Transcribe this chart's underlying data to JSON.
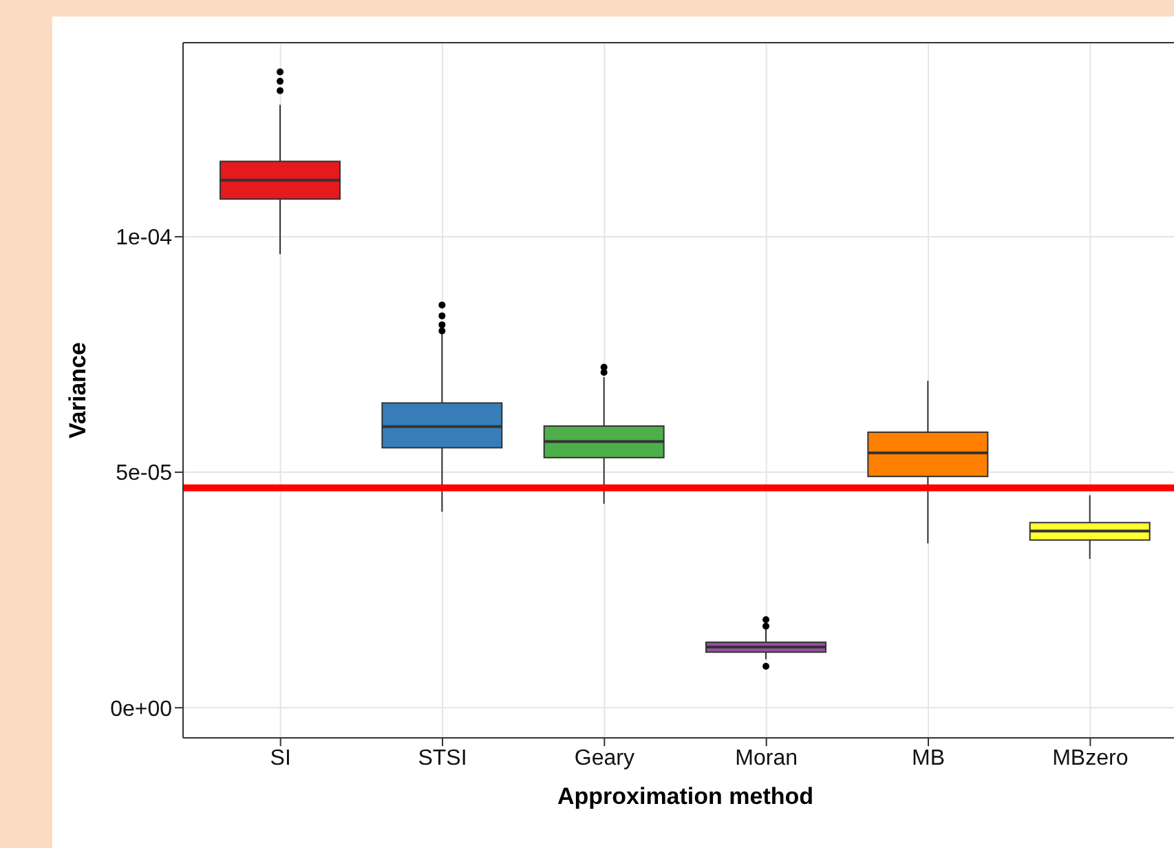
{
  "chart_data": {
    "type": "box",
    "xlabel": "Approximation method",
    "ylabel": "Variance",
    "categories": [
      "SI",
      "STSI",
      "Geary",
      "Moran",
      "MB",
      "MBzero"
    ],
    "colors": [
      "#e41a1c",
      "#377eb8",
      "#4daf4a",
      "#984ea3",
      "#ff7f00",
      "#ffff33"
    ],
    "boxes": [
      {
        "low": 9.63e-05,
        "q1": 0.000108,
        "median": 0.000112,
        "q3": 0.000116,
        "high": 0.000128,
        "outliers": [
          0.000135,
          0.000133,
          0.000131
        ]
      },
      {
        "low": 4.16e-05,
        "q1": 5.52e-05,
        "median": 5.97e-05,
        "q3": 6.47e-05,
        "high": 7.95e-05,
        "outliers": [
          8.55e-05,
          8.32e-05,
          8.13e-05,
          8e-05
        ]
      },
      {
        "low": 4.33e-05,
        "q1": 5.31e-05,
        "median": 5.65e-05,
        "q3": 5.98e-05,
        "high": 7.02e-05,
        "outliers": [
          7.23e-05,
          7.12e-05
        ]
      },
      {
        "low": 1.03e-05,
        "q1": 1.18e-05,
        "median": 1.29e-05,
        "q3": 1.39e-05,
        "high": 1.68e-05,
        "outliers": [
          1.87e-05,
          1.73e-05,
          8.8e-06
        ]
      },
      {
        "low": 3.49e-05,
        "q1": 4.91e-05,
        "median": 5.41e-05,
        "q3": 5.85e-05,
        "high": 6.94e-05
      },
      {
        "low": 3.16e-05,
        "q1": 3.56e-05,
        "median": 3.75e-05,
        "q3": 3.93e-05,
        "high": 4.51e-05
      }
    ],
    "ylim": [
      -6.4e-06,
      0.0001412
    ],
    "yticks": [
      {
        "value": 0,
        "label": "0e+00"
      },
      {
        "value": 5e-05,
        "label": "5e-05"
      },
      {
        "value": 0.0001,
        "label": "1e-04"
      }
    ],
    "ref_lines": [
      {
        "axis": "y",
        "value": 4.67e-05,
        "color": "#ff0000"
      }
    ],
    "grid": true
  }
}
